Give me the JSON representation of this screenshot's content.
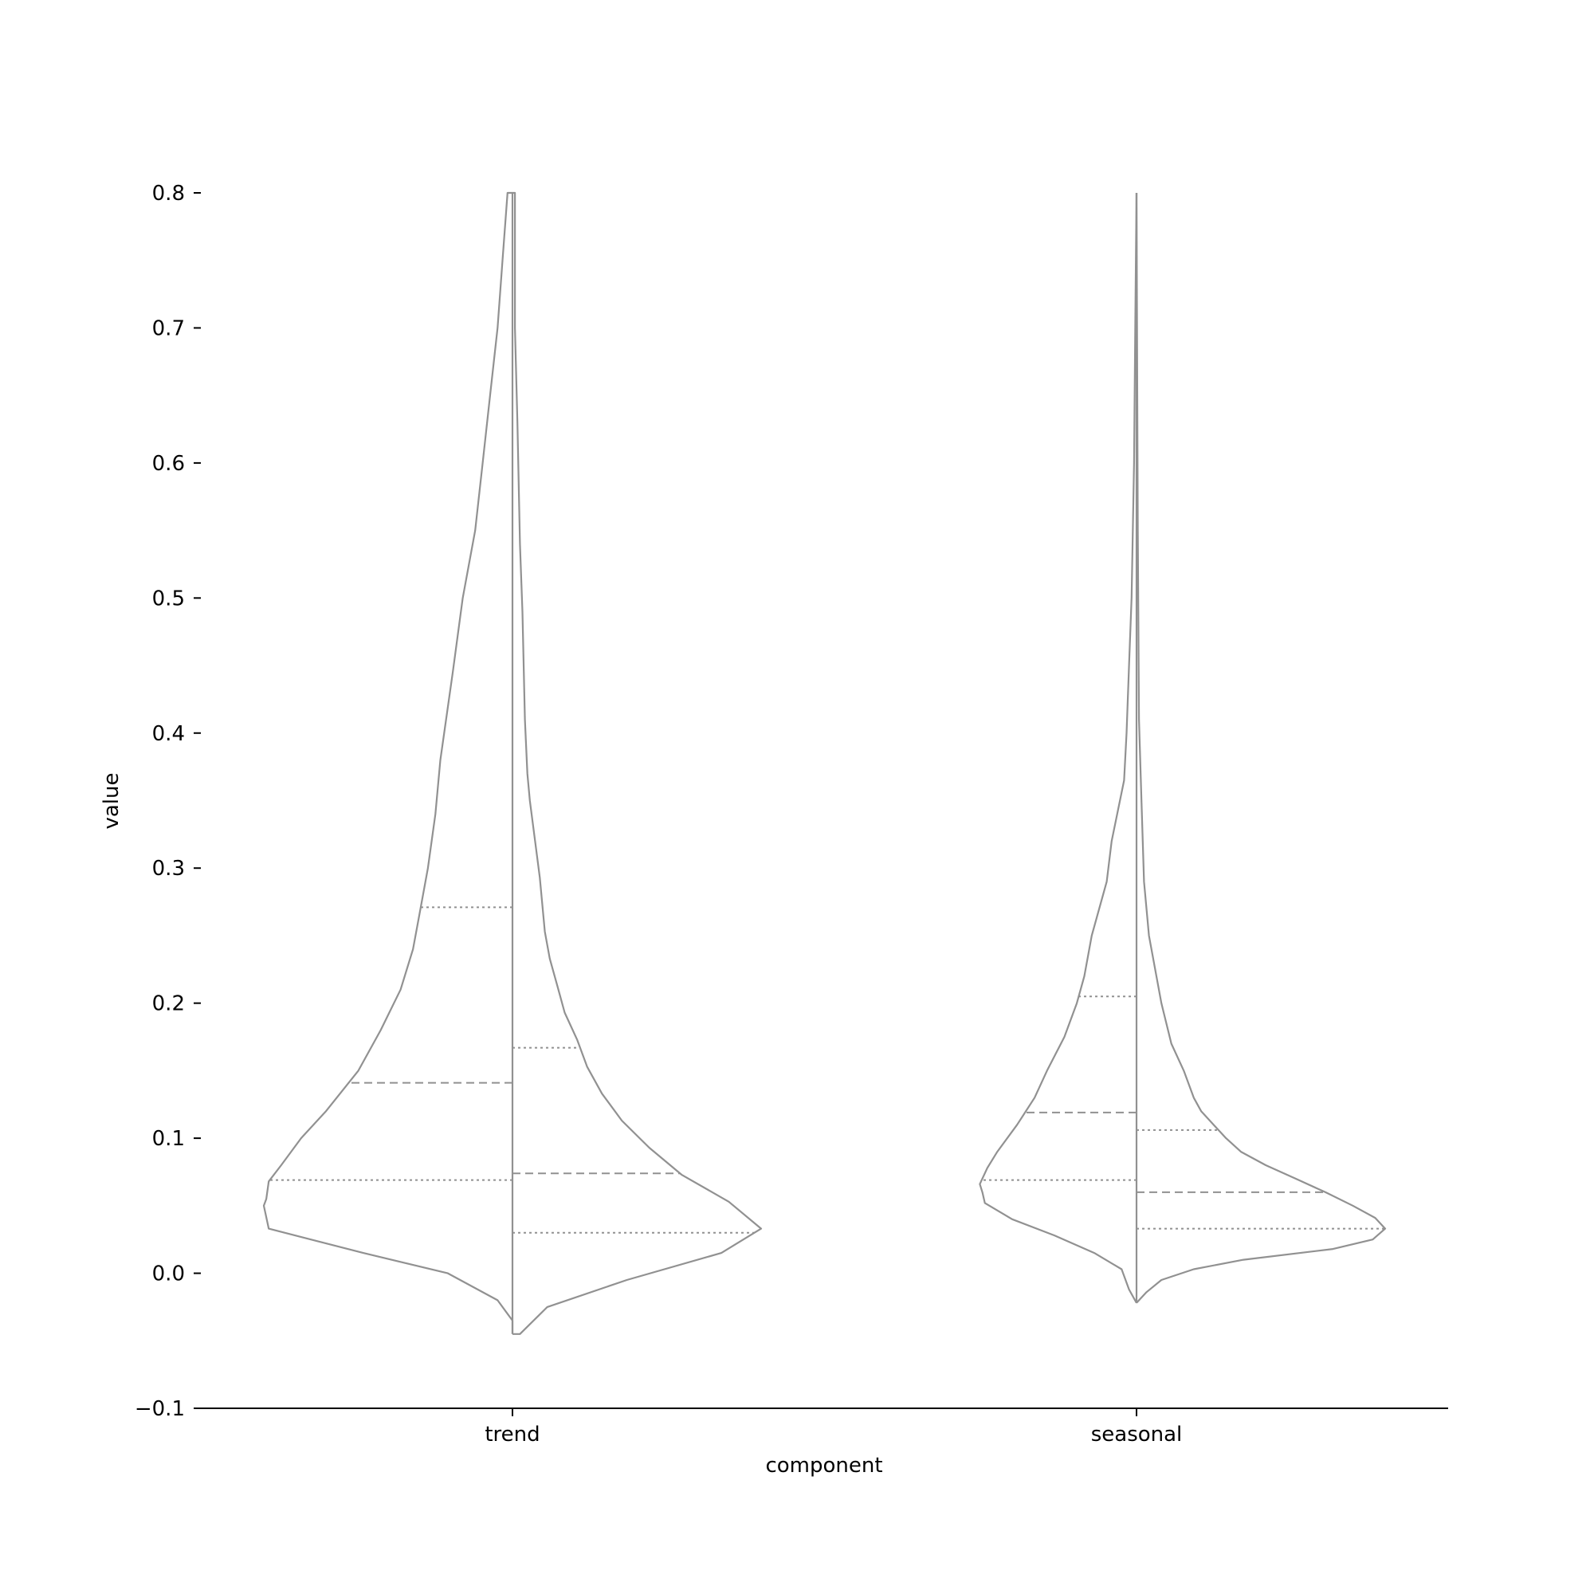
{
  "chart_data": {
    "type": "violin",
    "split": true,
    "inner": "quartile",
    "title": "",
    "xlabel": "component",
    "ylabel": "value",
    "ylim": [
      -0.1,
      0.8
    ],
    "yticks": [
      -0.1,
      0.0,
      0.1,
      0.2,
      0.3,
      0.4,
      0.5,
      0.6,
      0.7,
      0.8
    ],
    "ytick_labels": [
      "−0.1",
      "0.0",
      "0.1",
      "0.2",
      "0.3",
      "0.4",
      "0.5",
      "0.6",
      "0.7",
      "0.8"
    ],
    "categories": [
      "trend",
      "seasonal"
    ],
    "line_color": "#919191",
    "grid": false,
    "legend": "none",
    "violins": [
      {
        "category": "trend",
        "left": {
          "density": [
            [
              -0.045,
              0.0
            ],
            [
              -0.035,
              0.0
            ],
            [
              -0.02,
              0.06
            ],
            [
              0.0,
              0.26
            ],
            [
              0.015,
              0.6
            ],
            [
              0.033,
              0.98
            ],
            [
              0.05,
              1.0
            ],
            [
              0.055,
              0.99
            ],
            [
              0.068,
              0.98
            ],
            [
              0.08,
              0.93
            ],
            [
              0.1,
              0.85
            ],
            [
              0.12,
              0.75
            ],
            [
              0.15,
              0.62
            ],
            [
              0.18,
              0.53
            ],
            [
              0.21,
              0.45
            ],
            [
              0.24,
              0.4
            ],
            [
              0.27,
              0.37
            ],
            [
              0.3,
              0.34
            ],
            [
              0.34,
              0.31
            ],
            [
              0.38,
              0.29
            ],
            [
              0.445,
              0.24
            ],
            [
              0.5,
              0.2
            ],
            [
              0.55,
              0.15
            ],
            [
              0.6,
              0.12
            ],
            [
              0.65,
              0.09
            ],
            [
              0.7,
              0.06
            ],
            [
              0.75,
              0.04
            ],
            [
              0.8,
              0.02
            ]
          ],
          "quartiles": [
            0.069,
            0.141,
            0.271
          ]
        },
        "right": {
          "density": [
            [
              -0.045,
              0.0
            ],
            [
              -0.045,
              0.03
            ],
            [
              -0.025,
              0.14
            ],
            [
              -0.005,
              0.46
            ],
            [
              0.015,
              0.84
            ],
            [
              0.033,
              1.0
            ],
            [
              0.053,
              0.87
            ],
            [
              0.073,
              0.68
            ],
            [
              0.093,
              0.55
            ],
            [
              0.113,
              0.44
            ],
            [
              0.133,
              0.36
            ],
            [
              0.153,
              0.3
            ],
            [
              0.173,
              0.26
            ],
            [
              0.193,
              0.21
            ],
            [
              0.213,
              0.18
            ],
            [
              0.233,
              0.15
            ],
            [
              0.253,
              0.13
            ],
            [
              0.293,
              0.11
            ],
            [
              0.35,
              0.07
            ],
            [
              0.37,
              0.06
            ],
            [
              0.41,
              0.05
            ],
            [
              0.49,
              0.04
            ],
            [
              0.54,
              0.03
            ],
            [
              0.63,
              0.02
            ],
            [
              0.7,
              0.01
            ],
            [
              0.8,
              0.01
            ]
          ],
          "quartiles": [
            0.03,
            0.074,
            0.167
          ]
        }
      },
      {
        "category": "seasonal",
        "left": {
          "density": [
            [
              -0.022,
              0.0
            ],
            [
              -0.012,
              0.03
            ],
            [
              0.003,
              0.06
            ],
            [
              0.015,
              0.17
            ],
            [
              0.028,
              0.33
            ],
            [
              0.04,
              0.5
            ],
            [
              0.052,
              0.61
            ],
            [
              0.06,
              0.62
            ],
            [
              0.066,
              0.63
            ],
            [
              0.078,
              0.6
            ],
            [
              0.09,
              0.56
            ],
            [
              0.11,
              0.48
            ],
            [
              0.13,
              0.41
            ],
            [
              0.15,
              0.36
            ],
            [
              0.175,
              0.29
            ],
            [
              0.2,
              0.24
            ],
            [
              0.22,
              0.21
            ],
            [
              0.25,
              0.18
            ],
            [
              0.29,
              0.12
            ],
            [
              0.32,
              0.1
            ],
            [
              0.365,
              0.05
            ],
            [
              0.4,
              0.04
            ],
            [
              0.45,
              0.03
            ],
            [
              0.5,
              0.02
            ],
            [
              0.6,
              0.01
            ],
            [
              0.7,
              0.005
            ],
            [
              0.8,
              0.0
            ]
          ],
          "quartiles": [
            0.069,
            0.119,
            0.205
          ]
        },
        "right": {
          "density": [
            [
              -0.022,
              0.0
            ],
            [
              -0.014,
              0.04
            ],
            [
              -0.005,
              0.1
            ],
            [
              0.003,
              0.23
            ],
            [
              0.01,
              0.43
            ],
            [
              0.018,
              0.79
            ],
            [
              0.025,
              0.95
            ],
            [
              0.033,
              1.0
            ],
            [
              0.041,
              0.96
            ],
            [
              0.05,
              0.87
            ],
            [
              0.06,
              0.76
            ],
            [
              0.07,
              0.64
            ],
            [
              0.08,
              0.52
            ],
            [
              0.09,
              0.42
            ],
            [
              0.1,
              0.36
            ],
            [
              0.11,
              0.31
            ],
            [
              0.12,
              0.26
            ],
            [
              0.13,
              0.23
            ],
            [
              0.15,
              0.19
            ],
            [
              0.17,
              0.14
            ],
            [
              0.2,
              0.1
            ],
            [
              0.25,
              0.05
            ],
            [
              0.29,
              0.03
            ],
            [
              0.35,
              0.02
            ],
            [
              0.41,
              0.01
            ],
            [
              0.55,
              0.005
            ],
            [
              0.8,
              0.0
            ]
          ],
          "quartiles": [
            0.033,
            0.06,
            0.106
          ]
        }
      }
    ]
  }
}
